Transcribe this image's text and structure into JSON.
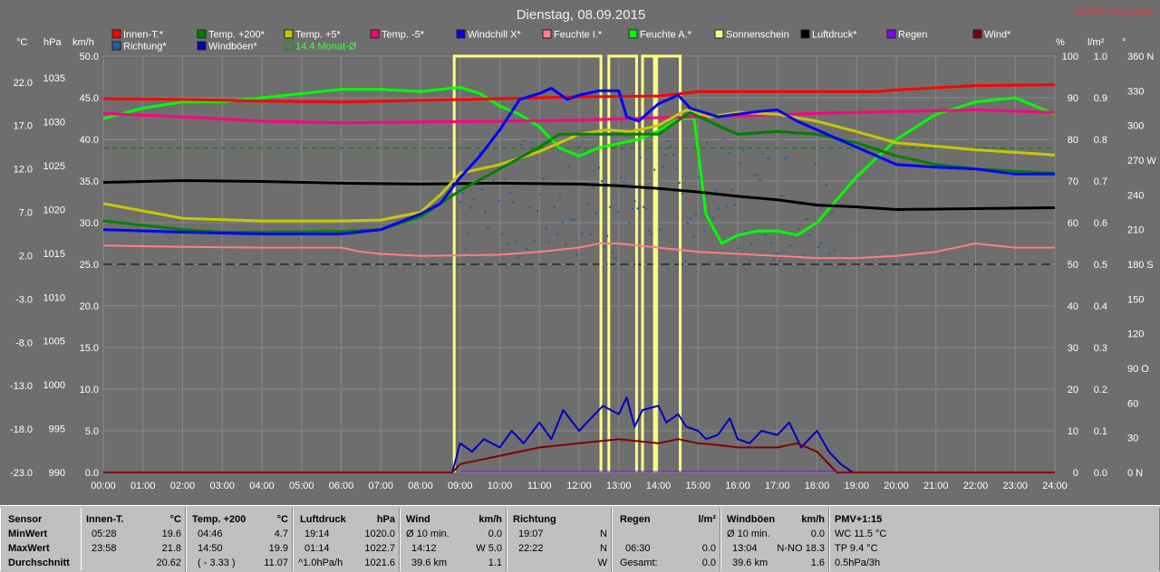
{
  "title": "Dienstag, 08.09.2015",
  "station": "Station Göritzhain",
  "unit_labels": {
    "celsius": "°C",
    "hpa": "hPa",
    "kmh": "km/h",
    "percent": "%",
    "lm2": "l/m²",
    "deg": "°"
  },
  "legend": [
    {
      "label": "Innen-T.*",
      "color": "#ff0000"
    },
    {
      "label": "Richtung*",
      "color": "#1f5fa8"
    },
    {
      "label": "Temp. +200*",
      "color": "#008000"
    },
    {
      "label": "Windböen*",
      "color": "#0000c0"
    },
    {
      "label": "Temp. +5*",
      "color": "#c8c800"
    },
    {
      "label": "14.4 Monat-Ø",
      "color": "#00ff00"
    },
    {
      "label": "Temp. -5*",
      "color": "#ff0080"
    },
    {
      "label": "Windchill X*",
      "color": "#0000ff"
    },
    {
      "label": "Feuchte I.*",
      "color": "#ff8080"
    },
    {
      "label": "Feuchte A.*",
      "color": "#00ff00"
    },
    {
      "label": "Sonnenschein",
      "color": "#ffff80"
    },
    {
      "label": "Luftdruck*",
      "color": "#000000"
    },
    {
      "label": "Regen",
      "color": "#8000ff"
    },
    {
      "label": "Wind*",
      "color": "#800000"
    }
  ],
  "axes": {
    "temp": [
      "22.0",
      "17.0",
      "12.0",
      "7.0",
      "2.0",
      "-3.0",
      "-8.0",
      "-13.0",
      "-18.0",
      "-23.0"
    ],
    "pressure": [
      "1035",
      "1030",
      "1025",
      "1020",
      "1015",
      "1010",
      "1005",
      "1000",
      "995",
      "990"
    ],
    "wind": [
      "50.0",
      "45.0",
      "40.0",
      "35.0",
      "30.0",
      "25.0",
      "20.0",
      "15.0",
      "10.0",
      "5.0",
      "0.0"
    ],
    "percent": [
      "100",
      "90",
      "80",
      "70",
      "60",
      "50",
      "40",
      "30",
      "20",
      "10",
      "0"
    ],
    "rain": [
      "1.0",
      "0.9",
      "0.8",
      "0.7",
      "0.6",
      "0.5",
      "0.4",
      "0.3",
      "0.2",
      "0.1",
      "0.0"
    ],
    "direction": [
      "360 N",
      "330",
      "300",
      "270 W",
      "240",
      "210",
      "180 S",
      "150",
      "120",
      "90  O",
      "60",
      "30",
      "0  N"
    ],
    "time": [
      "00:00",
      "01:00",
      "02:00",
      "03:00",
      "04:00",
      "05:00",
      "06:00",
      "07:00",
      "08:00",
      "09:00",
      "10:00",
      "11:00",
      "12:00",
      "13:00",
      "14:00",
      "15:00",
      "16:00",
      "17:00",
      "18:00",
      "19:00",
      "20:00",
      "21:00",
      "22:00",
      "23:00",
      "24:00"
    ]
  },
  "chart_data": {
    "type": "line",
    "title": "Dienstag, 08.09.2015",
    "x_unit": "hour",
    "ylim_temp": [
      -23,
      25
    ],
    "ylim_pressure": [
      990,
      1037.5
    ],
    "ylim_percent": [
      0,
      100
    ],
    "series": [
      {
        "name": "Innen-T.*",
        "axis": "temp",
        "x": [
          0,
          2,
          4,
          6,
          8,
          10,
          12,
          14,
          15,
          18,
          19.5,
          20,
          22,
          24
        ],
        "values": [
          20.1,
          20.0,
          19.8,
          19.7,
          19.9,
          20.1,
          20.3,
          20.4,
          20.9,
          20.9,
          20.9,
          21.1,
          21.6,
          21.7
        ]
      },
      {
        "name": "Temp. +5*",
        "axis": "temp",
        "x": [
          0,
          2,
          4,
          6,
          7,
          8,
          8.5,
          9,
          10,
          11,
          12,
          12.7,
          13.3,
          14,
          14.7,
          15.3,
          16,
          17,
          18,
          19,
          20,
          22,
          24
        ],
        "values": [
          8.0,
          6.3,
          6.0,
          6.0,
          6.1,
          7.0,
          9.0,
          11.5,
          12.5,
          14.0,
          16.0,
          16.5,
          16.3,
          17.0,
          18.8,
          18.0,
          18.5,
          18.3,
          17.5,
          16.3,
          15.0,
          14.2,
          13.6
        ]
      },
      {
        "name": "Temp. +200*",
        "axis": "temp",
        "x": [
          0,
          1,
          2,
          3,
          4,
          6,
          7,
          8,
          9,
          10,
          11,
          11.5,
          14,
          14.8,
          15.5,
          16,
          17,
          18,
          19,
          20,
          21,
          22,
          24
        ],
        "values": [
          6.0,
          5.5,
          5.0,
          4.7,
          4.7,
          4.8,
          5.0,
          6.5,
          9.5,
          12,
          14.5,
          16.0,
          16.0,
          18.5,
          17.0,
          16.0,
          16.3,
          16.0,
          15.0,
          13.5,
          12.5,
          12.0,
          11.5
        ]
      },
      {
        "name": "Windchill X*",
        "axis": "temp",
        "x": [
          0,
          2,
          4,
          6,
          7,
          8,
          8.5,
          9,
          9.5,
          10,
          10.5,
          11,
          11.3,
          11.7,
          12,
          12.5,
          13,
          13.2,
          13.5,
          14,
          14.5,
          14.8,
          15.5,
          16,
          16.5,
          17,
          17.5,
          18,
          19,
          20,
          21,
          22,
          23,
          24
        ],
        "values": [
          5.0,
          4.7,
          4.5,
          4.5,
          5.0,
          6.8,
          8.0,
          11.0,
          13.5,
          16.5,
          20.0,
          20.7,
          21.3,
          20.0,
          20.5,
          21.0,
          21.0,
          18.0,
          17.5,
          19.5,
          20.5,
          19.0,
          18.0,
          18.3,
          18.6,
          18.8,
          17.5,
          16.5,
          14.5,
          12.5,
          12.2,
          12.0,
          11.4,
          11.4
        ]
      },
      {
        "name": "Temp. -5*",
        "axis": "temp",
        "x": [
          0,
          2,
          4,
          6,
          8,
          10,
          12,
          14,
          16,
          18,
          20,
          22,
          24
        ],
        "values": [
          18.4,
          18.0,
          17.5,
          17.3,
          17.4,
          17.5,
          17.6,
          17.9,
          18.1,
          18.4,
          18.6,
          18.8,
          18.5
        ]
      },
      {
        "name": "Luftdruck*",
        "axis": "pressure",
        "x": [
          0,
          2,
          4,
          6,
          8,
          10,
          12,
          13,
          14,
          15,
          16,
          17,
          18,
          19,
          20,
          22,
          24
        ],
        "values": [
          1023.1,
          1023.3,
          1023.2,
          1023.0,
          1022.9,
          1023.0,
          1022.9,
          1022.7,
          1022.4,
          1022.0,
          1021.5,
          1021.1,
          1020.5,
          1020.3,
          1020.0,
          1020.1,
          1020.2
        ]
      },
      {
        "name": "Feuchte A.*",
        "axis": "percent",
        "x": [
          0,
          1,
          2,
          3,
          4,
          5,
          6,
          7,
          8,
          8.5,
          9,
          9.5,
          10,
          10.5,
          11,
          11.5,
          12,
          12.5,
          13,
          13.5,
          14,
          14.5,
          14.9,
          15.2,
          15.6,
          16,
          16.5,
          17,
          17.5,
          18,
          19,
          20,
          21,
          22,
          23,
          24
        ],
        "values": [
          85,
          87.5,
          89,
          89,
          90,
          91,
          92,
          92,
          91.5,
          92,
          92.5,
          91,
          88,
          86,
          83,
          78,
          76,
          78,
          79,
          80,
          82,
          85,
          85,
          62,
          55,
          57,
          58,
          58,
          57,
          60,
          71,
          80,
          86,
          89,
          90,
          86
        ]
      },
      {
        "name": "Feuchte I.*",
        "axis": "percent",
        "x": [
          0,
          2,
          4,
          6,
          6.5,
          7,
          8,
          10,
          11,
          12,
          12.5,
          13,
          14,
          15,
          16,
          17,
          18,
          19,
          20,
          21,
          22,
          23,
          24
        ],
        "values": [
          54.5,
          54.2,
          54.0,
          54.0,
          53.0,
          52.5,
          52.0,
          52.3,
          53.0,
          54.0,
          55.0,
          55.0,
          54.0,
          53.0,
          52.5,
          52.0,
          51.5,
          51.5,
          52.0,
          53.0,
          55.0,
          54.0,
          54.0
        ]
      },
      {
        "name": "Wind*",
        "axis": "wind",
        "x": [
          0,
          8.8,
          9,
          9.5,
          10,
          11,
          12,
          13,
          14,
          14.5,
          15,
          15.5,
          16,
          17,
          17.5,
          18,
          18.5,
          24
        ],
        "values": [
          0,
          0,
          1.0,
          1.5,
          2.0,
          3.0,
          3.5,
          4.0,
          3.5,
          4.0,
          3.5,
          3.3,
          3.0,
          3.0,
          3.5,
          2.5,
          0,
          0
        ]
      },
      {
        "name": "Windböen*",
        "axis": "wind",
        "x": [
          0,
          8.8,
          9,
          9.3,
          9.6,
          10,
          10.3,
          10.6,
          11,
          11.3,
          11.6,
          12,
          12.3,
          12.6,
          13,
          13.2,
          13.4,
          13.6,
          14,
          14.2,
          14.5,
          14.7,
          15,
          15.2,
          15.5,
          15.8,
          16,
          16.3,
          16.6,
          17,
          17.3,
          17.6,
          18,
          18.3,
          18.6,
          18.9,
          24
        ],
        "values": [
          0,
          0,
          3.5,
          2.5,
          4.0,
          3.0,
          5.0,
          3.5,
          6.0,
          4.0,
          7.5,
          5.0,
          6.5,
          8.0,
          7.0,
          9.0,
          5.5,
          7.5,
          8.0,
          6.0,
          7.0,
          5.5,
          5.0,
          4.0,
          4.5,
          6.5,
          4.0,
          3.5,
          5.0,
          4.5,
          6.0,
          3.0,
          5.0,
          2.5,
          1.0,
          0,
          0
        ]
      }
    ],
    "sunshine_periods": [
      [
        8.85,
        12.55
      ],
      [
        12.75,
        13.45
      ],
      [
        13.6,
        13.9
      ],
      [
        13.95,
        14.55
      ]
    ],
    "reference_lines": [
      {
        "label": "14.4 Monat-Ø",
        "axis": "temp",
        "value": 14.4,
        "color": "#008000"
      },
      {
        "axis": "temp",
        "value": 1.0,
        "color": "#000000"
      }
    ]
  },
  "table": {
    "row_labels": {
      "sensor": "Sensor",
      "min": "MinWert",
      "max": "MaxWert",
      "avg": "Durchschnitt"
    },
    "innen": {
      "title": "Innen-T.",
      "unit": "°C",
      "min_time": "05:28",
      "min_val": "19.6",
      "max_time": "23:58",
      "max_val": "21.8",
      "avg": "20.62"
    },
    "temp200": {
      "title": "Temp. +200",
      "unit": "°C",
      "min_time": "04:46",
      "min_val": "4.7",
      "max_time": "14:50",
      "max_val": "19.9",
      "avg_pre": "( - 3.33 )",
      "avg": "11.07"
    },
    "luftdruck": {
      "title": "Luftdruck",
      "unit": "hPa",
      "min_time": "19:14",
      "min_val": "1020.0",
      "max_time": "01:14",
      "max_val": "1022.7",
      "avg_pre": "^1.0hPa/h",
      "avg": "1021.6"
    },
    "wind": {
      "title": "Wind",
      "unit": "km/h",
      "r1a": "Ø 10 min.",
      "r1b": "0.0",
      "r2a": "14:12",
      "r2b": "W 5.0",
      "r3a": "39.6 km",
      "r3b": "1.1"
    },
    "richtung": {
      "title": "Richtung",
      "r1a": "19:07",
      "r1b": "N",
      "r2a": "22:22",
      "r2b": "N",
      "r3b": "W"
    },
    "regen": {
      "title": "Regen",
      "unit": "l/m²",
      "r2a": "06:30",
      "r2b": "0.0",
      "r3a": "Gesamt:",
      "r3b": "0.0"
    },
    "boeen": {
      "title": "Windböen",
      "unit": "km/h",
      "r1a": "Ø 10 min.",
      "r1b": "0.0",
      "r2a": "13:04",
      "r2b": "N-NO 18.3",
      "r3a": "39.6 km",
      "r3b": "1.6"
    },
    "pmv": {
      "title": "PMV+1:15",
      "r1": "WC 11.5 °C",
      "r2": "TP 9.4 °C",
      "r3": "0.5hPa/3h"
    }
  }
}
